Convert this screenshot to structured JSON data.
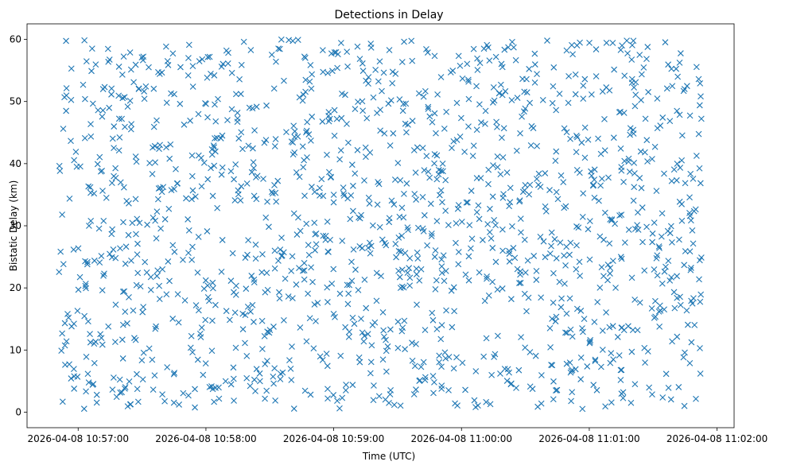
{
  "chart_data": {
    "type": "scatter",
    "title": "Detections in Delay",
    "xlabel": "Time (UTC)",
    "ylabel": "Bistatic Delay (km)",
    "marker": "x",
    "color": "#1f77b4",
    "grid": false,
    "legend": "none",
    "xlim": [
      "2026-04-08 10:56:36",
      "2026-04-08 11:02:08"
    ],
    "ylim": [
      -2.5,
      62.5
    ],
    "x_ticks": [
      "2026-04-08 10:57:00",
      "2026-04-08 10:58:00",
      "2026-04-08 10:59:00",
      "2026-04-08 11:00:00",
      "2026-04-08 11:01:00",
      "2026-04-08 11:02:00"
    ],
    "y_ticks": [
      "0",
      "10",
      "20",
      "30",
      "40",
      "50",
      "60"
    ],
    "x_range": [
      "2026-04-08 10:56:51",
      "2026-04-08 11:01:53"
    ],
    "y_range": [
      0.5,
      60
    ],
    "point_count": 1500
  }
}
